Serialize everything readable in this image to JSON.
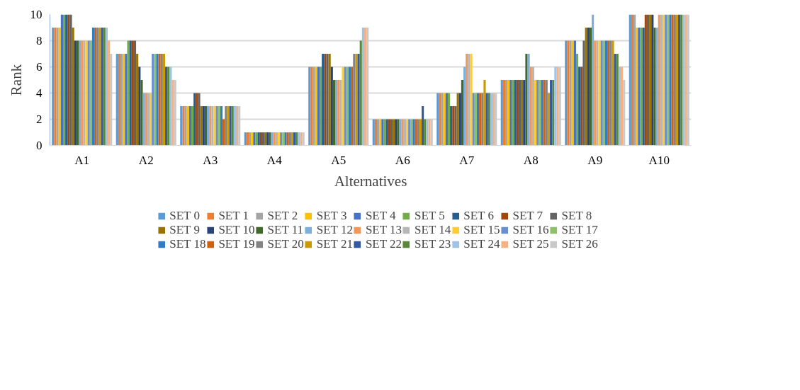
{
  "chart_data": {
    "type": "bar",
    "xlabel": "Alternatives",
    "ylabel": "Rank",
    "categories": [
      "A1",
      "A2",
      "A3",
      "A4",
      "A5",
      "A6",
      "A7",
      "A8",
      "A9",
      "A10"
    ],
    "ylim": [
      0,
      10
    ],
    "yticks": [
      0,
      2,
      4,
      6,
      8,
      10
    ],
    "grid": "y",
    "legend": "bottom",
    "series": [
      {
        "name": "SET 0",
        "color": "#5b9bd5",
        "values": [
          9,
          7,
          3,
          1,
          6,
          2,
          4,
          5,
          8,
          10
        ]
      },
      {
        "name": "SET 1",
        "color": "#ed7d31",
        "values": [
          9,
          7,
          3,
          1,
          6,
          2,
          4,
          5,
          8,
          10
        ]
      },
      {
        "name": "SET 2",
        "color": "#a5a5a5",
        "values": [
          9,
          7,
          3,
          1,
          6,
          2,
          4,
          5,
          8,
          10
        ]
      },
      {
        "name": "SET 3",
        "color": "#ffc000",
        "values": [
          9,
          7,
          3,
          1,
          6,
          2,
          4,
          5,
          8,
          9
        ]
      },
      {
        "name": "SET 4",
        "color": "#4472c4",
        "values": [
          10,
          7,
          3,
          1,
          6,
          2,
          4,
          5,
          8,
          9
        ]
      },
      {
        "name": "SET 5",
        "color": "#70ad47",
        "values": [
          10,
          8,
          3,
          1,
          6,
          2,
          4,
          5,
          7,
          9
        ]
      },
      {
        "name": "SET 6",
        "color": "#255e91",
        "values": [
          10,
          8,
          4,
          1,
          7,
          2,
          3,
          5,
          6,
          9
        ]
      },
      {
        "name": "SET 7",
        "color": "#9e480e",
        "values": [
          10,
          8,
          4,
          1,
          7,
          2,
          3,
          5,
          6,
          10
        ]
      },
      {
        "name": "SET 8",
        "color": "#636363",
        "values": [
          10,
          8,
          4,
          1,
          7,
          2,
          3,
          5,
          8,
          10
        ]
      },
      {
        "name": "SET 9",
        "color": "#997300",
        "values": [
          9,
          7,
          3,
          1,
          7,
          2,
          4,
          5,
          9,
          10
        ]
      },
      {
        "name": "SET 10",
        "color": "#264478",
        "values": [
          8,
          6,
          3,
          1,
          6,
          2,
          4,
          5,
          9,
          10
        ]
      },
      {
        "name": "SET 11",
        "color": "#43682b",
        "values": [
          8,
          5,
          3,
          1,
          5,
          2,
          5,
          7,
          9,
          9
        ]
      },
      {
        "name": "SET 12",
        "color": "#7cafdd",
        "values": [
          8,
          4,
          3,
          1,
          5,
          2,
          6,
          7,
          10,
          9
        ]
      },
      {
        "name": "SET 13",
        "color": "#f1975a",
        "values": [
          8,
          4,
          3,
          1,
          5,
          2,
          7,
          6,
          8,
          10
        ]
      },
      {
        "name": "SET 14",
        "color": "#b7b7b7",
        "values": [
          8,
          4,
          3,
          1,
          5,
          2,
          7,
          6,
          8,
          10
        ]
      },
      {
        "name": "SET 15",
        "color": "#ffcd33",
        "values": [
          8,
          4,
          3,
          1,
          6,
          2,
          7,
          5,
          8,
          10
        ]
      },
      {
        "name": "SET 16",
        "color": "#698ed0",
        "values": [
          8,
          7,
          3,
          1,
          6,
          2,
          4,
          5,
          8,
          10
        ]
      },
      {
        "name": "SET 17",
        "color": "#8cc168",
        "values": [
          8,
          7,
          3,
          1,
          6,
          2,
          4,
          5,
          8,
          10
        ]
      },
      {
        "name": "SET 18",
        "color": "#327dc2",
        "values": [
          9,
          7,
          3,
          1,
          6,
          2,
          4,
          5,
          8,
          10
        ]
      },
      {
        "name": "SET 19",
        "color": "#d26012",
        "values": [
          9,
          7,
          2,
          1,
          6,
          2,
          4,
          5,
          8,
          10
        ]
      },
      {
        "name": "SET 20",
        "color": "#848484",
        "values": [
          9,
          7,
          3,
          1,
          7,
          2,
          4,
          5,
          8,
          10
        ]
      },
      {
        "name": "SET 21",
        "color": "#cc9a00",
        "values": [
          9,
          7,
          3,
          1,
          7,
          2,
          5,
          4,
          8,
          10
        ]
      },
      {
        "name": "SET 22",
        "color": "#335aa1",
        "values": [
          9,
          6,
          3,
          1,
          7,
          3,
          4,
          5,
          7,
          10
        ]
      },
      {
        "name": "SET 23",
        "color": "#5a8a39",
        "values": [
          9,
          6,
          3,
          1,
          8,
          2,
          4,
          5,
          7,
          10
        ]
      },
      {
        "name": "SET 24",
        "color": "#9dc3e6",
        "values": [
          9,
          6,
          3,
          1,
          9,
          2,
          4,
          6,
          6,
          10
        ]
      },
      {
        "name": "SET 25",
        "color": "#f4b183",
        "values": [
          8,
          5,
          3,
          1,
          9,
          2,
          4,
          6,
          6,
          10
        ]
      },
      {
        "name": "SET 26",
        "color": "#c9c9c9",
        "values": [
          7,
          5,
          3,
          1,
          9,
          2,
          4,
          6,
          5,
          10
        ]
      }
    ]
  }
}
